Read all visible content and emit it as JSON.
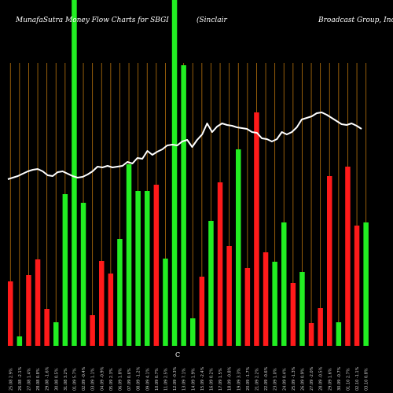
{
  "header": {
    "left": "MunafaSutra  Money Flow  Charts for SBGI",
    "middle": "(Sinclair",
    "right": "Broadcast Group, Inc)"
  },
  "axis_mark": "C",
  "chart_data": {
    "type": "bar",
    "title": "MunafaSutra Money Flow Charts for SBGI (Sinclair Broadcast Group, Inc)",
    "colors": {
      "up": "#22ee22",
      "down": "#ff1a1a",
      "price": "#ffffff",
      "grid": "#b8730d",
      "background": "#000000"
    },
    "bars": [
      {
        "v": 82,
        "d": "down"
      },
      {
        "v": 12,
        "d": "up"
      },
      {
        "v": 90,
        "d": "down"
      },
      {
        "v": 110,
        "d": "down"
      },
      {
        "v": 47,
        "d": "down"
      },
      {
        "v": 30,
        "d": "up"
      },
      {
        "v": 193,
        "d": "up"
      },
      {
        "v": 440,
        "d": "up"
      },
      {
        "v": 182,
        "d": "up"
      },
      {
        "v": 39,
        "d": "down"
      },
      {
        "v": 108,
        "d": "down"
      },
      {
        "v": 92,
        "d": "down"
      },
      {
        "v": 136,
        "d": "up"
      },
      {
        "v": 231,
        "d": "up"
      },
      {
        "v": 197,
        "d": "up"
      },
      {
        "v": 197,
        "d": "up"
      },
      {
        "v": 205,
        "d": "down"
      },
      {
        "v": 111,
        "d": "up"
      },
      {
        "v": 440,
        "d": "up"
      },
      {
        "v": 357,
        "d": "up"
      },
      {
        "v": 35,
        "d": "up"
      },
      {
        "v": 88,
        "d": "down"
      },
      {
        "v": 159,
        "d": "up"
      },
      {
        "v": 208,
        "d": "down"
      },
      {
        "v": 127,
        "d": "down"
      },
      {
        "v": 250,
        "d": "up"
      },
      {
        "v": 99,
        "d": "down"
      },
      {
        "v": 297,
        "d": "down"
      },
      {
        "v": 119,
        "d": "down"
      },
      {
        "v": 107,
        "d": "up"
      },
      {
        "v": 157,
        "d": "up"
      },
      {
        "v": 80,
        "d": "down"
      },
      {
        "v": 94,
        "d": "up"
      },
      {
        "v": 29,
        "d": "down"
      },
      {
        "v": 48,
        "d": "down"
      },
      {
        "v": 216,
        "d": "down"
      },
      {
        "v": 30,
        "d": "up"
      },
      {
        "v": 228,
        "d": "down"
      },
      {
        "v": 153,
        "d": "down"
      },
      {
        "v": 157,
        "d": "up"
      }
    ],
    "price_line": [
      212,
      214,
      216,
      219,
      222,
      224,
      225,
      222,
      217,
      216,
      221,
      222,
      219,
      216,
      214,
      215,
      218,
      222,
      228,
      227,
      229,
      227,
      228,
      229,
      234,
      232,
      239,
      238,
      248,
      243,
      247,
      250,
      255,
      256,
      255,
      260,
      262,
      253,
      262,
      269,
      283,
      272,
      279,
      283,
      281,
      280,
      278,
      277,
      276,
      272,
      271,
      264,
      263,
      260,
      263,
      272,
      269,
      272,
      278,
      288,
      290,
      292,
      296,
      297,
      294,
      290,
      286,
      282,
      281,
      283,
      280,
      276
    ],
    "x_labels": [
      "25.08 2.9%",
      "26.08 -2.1%",
      "27.08 1.4%",
      "28.08 0.8%",
      "29.08 -1.6%",
      "30.08 0.5%",
      "31.08 3.2%",
      "01.09 5.7%",
      "02.09 -0.4%",
      "03.09 1.1%",
      "04.09 -0.9%",
      "05.09 2.3%",
      "06.09 1.8%",
      "07.09 0.6%",
      "08.09 -1.2%",
      "09.09 4.1%",
      "10.09 0.7%",
      "11.09 2.5%",
      "12.09 -0.3%",
      "13.09 7.1%",
      "14.09 1.9%",
      "15.09 -2.4%",
      "16.09 0.2%",
      "17.09 1.5%",
      "18.09 -0.8%",
      "19.09 3.3%",
      "20.09 -1.7%",
      "21.09 2.2%",
      "22.09 -0.6%",
      "23.09 1.0%",
      "24.09 0.4%",
      "25.09 -1.3%",
      "26.09 0.9%",
      "27.09 -2.0%",
      "28.09 -0.5%",
      "29.09 1.6%",
      "30.09 -0.7%",
      "01.10 2.7%",
      "02.10 -1.1%",
      "03.10 0.8%"
    ]
  }
}
